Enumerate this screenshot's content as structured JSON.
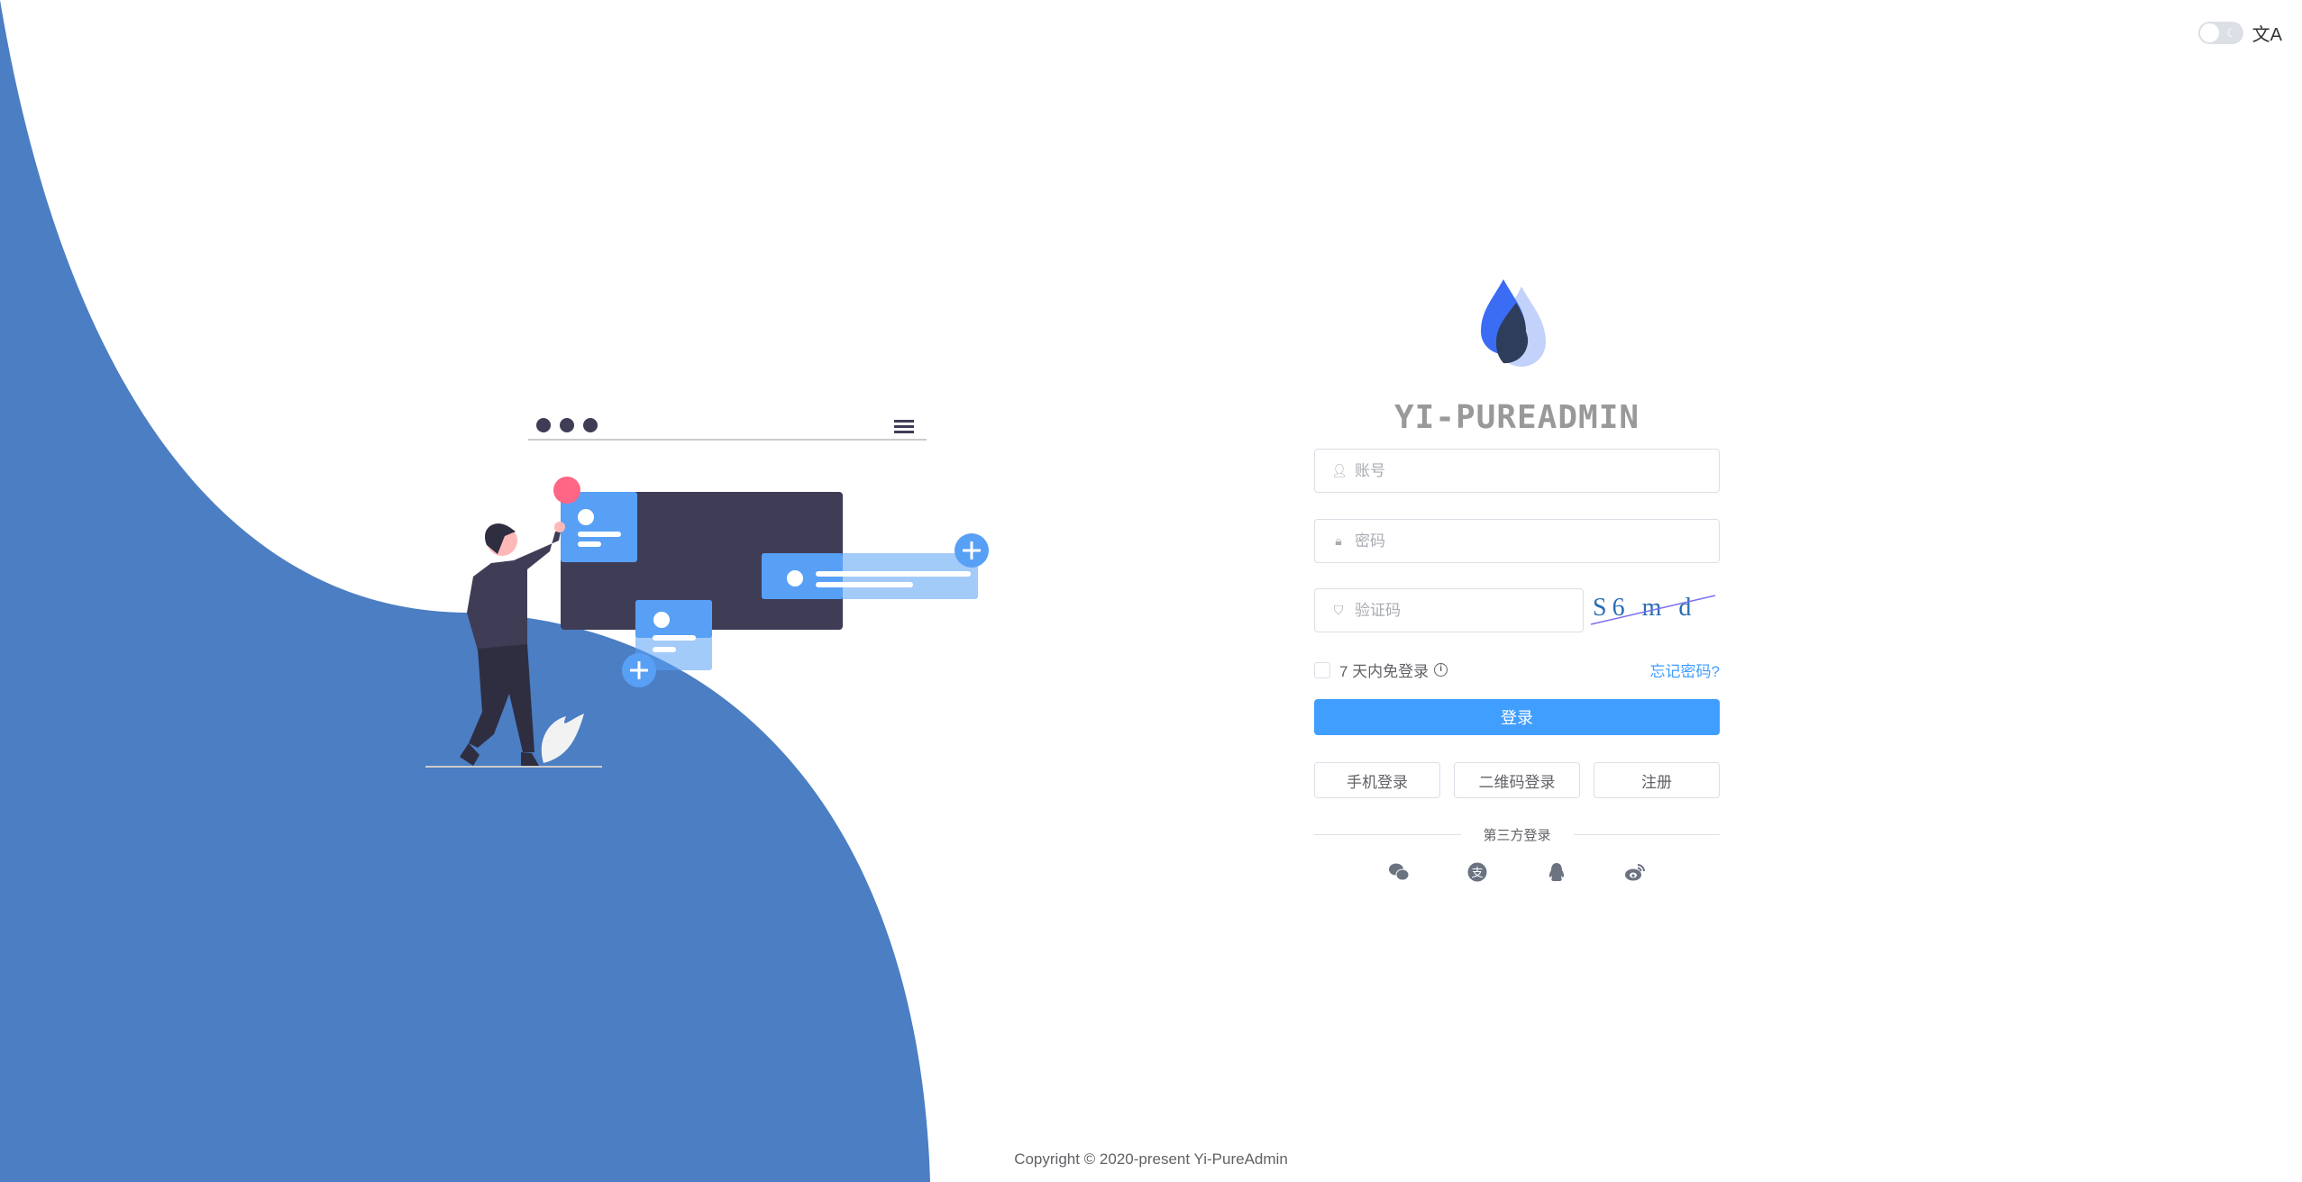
{
  "header": {
    "theme_toggle": "dark-mode-toggle",
    "language_icon": "translate-icon"
  },
  "brand": {
    "title": "YI-PUREADMIN",
    "logo": "water-drop-logo"
  },
  "form": {
    "username_placeholder": "账号",
    "password_placeholder": "密码",
    "captcha_placeholder": "验证码",
    "captcha_text": "S6 m d",
    "remember_label": "7 天内免登录",
    "forgot_label": "忘记密码?",
    "login_label": "登录",
    "phone_login": "手机登录",
    "qr_login": "二维码登录",
    "register": "注册",
    "third_party": "第三方登录"
  },
  "social": [
    "wechat-icon",
    "alipay-icon",
    "qq-icon",
    "weibo-icon"
  ],
  "footer": {
    "copyright": "Copyright © 2020-present Yi-PureAdmin"
  },
  "colors": {
    "primary": "#409eff",
    "wave": "#4b7ec3",
    "dark": "#3f3d56"
  }
}
